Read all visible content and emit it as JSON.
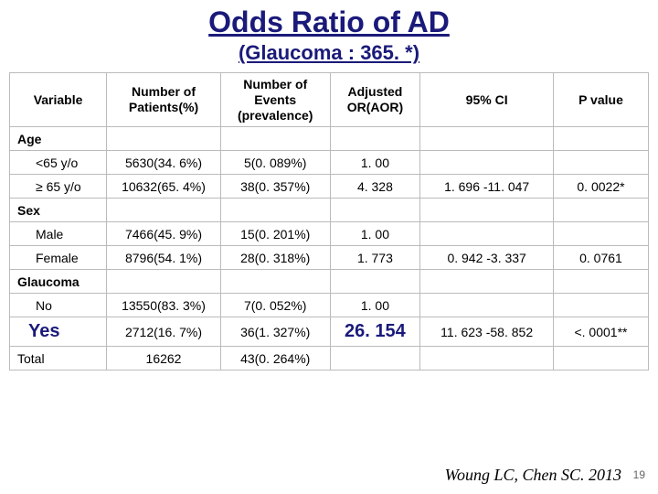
{
  "title": "Odds Ratio of AD",
  "subtitle": "(Glaucoma : 365. *)",
  "headers": {
    "variable": "Variable",
    "patients": "Number of Patients(%)",
    "events": "Number of Events (prevalence)",
    "aor": "Adjusted OR(AOR)",
    "ci": "95% CI",
    "pvalue": "P value"
  },
  "groups": {
    "age": {
      "label": "Age",
      "rows": [
        {
          "label": "<65 y/o",
          "patients": "5630(34. 6%)",
          "events": "5(0. 089%)",
          "aor": "1. 00",
          "ci": "",
          "pvalue": ""
        },
        {
          "label": "≥ 65 y/o",
          "patients": "10632(65. 4%)",
          "events": "38(0. 357%)",
          "aor": "4. 328",
          "ci": "1. 696 -11. 047",
          "pvalue": "0. 0022*"
        }
      ]
    },
    "sex": {
      "label": "Sex",
      "rows": [
        {
          "label": "Male",
          "patients": "7466(45. 9%)",
          "events": "15(0. 201%)",
          "aor": "1. 00",
          "ci": "",
          "pvalue": ""
        },
        {
          "label": "Female",
          "patients": "8796(54. 1%)",
          "events": "28(0. 318%)",
          "aor": "1. 773",
          "ci": "0. 942 -3. 337",
          "pvalue": "0. 0761"
        }
      ]
    },
    "glaucoma": {
      "label": "Glaucoma",
      "rows": [
        {
          "label": "No",
          "patients": "13550(83. 3%)",
          "events": "7(0. 052%)",
          "aor": "1. 00",
          "ci": "",
          "pvalue": ""
        },
        {
          "label": "Yes",
          "patients": "2712(16. 7%)",
          "events": "36(1. 327%)",
          "aor": "26. 154",
          "ci": "11. 623 -58. 852",
          "pvalue": "<. 0001**"
        }
      ]
    },
    "total": {
      "label": "Total",
      "patients": "16262",
      "events": "43(0. 264%)"
    }
  },
  "citation": "Woung LC, Chen SC. 2013",
  "slidenum": "19"
}
